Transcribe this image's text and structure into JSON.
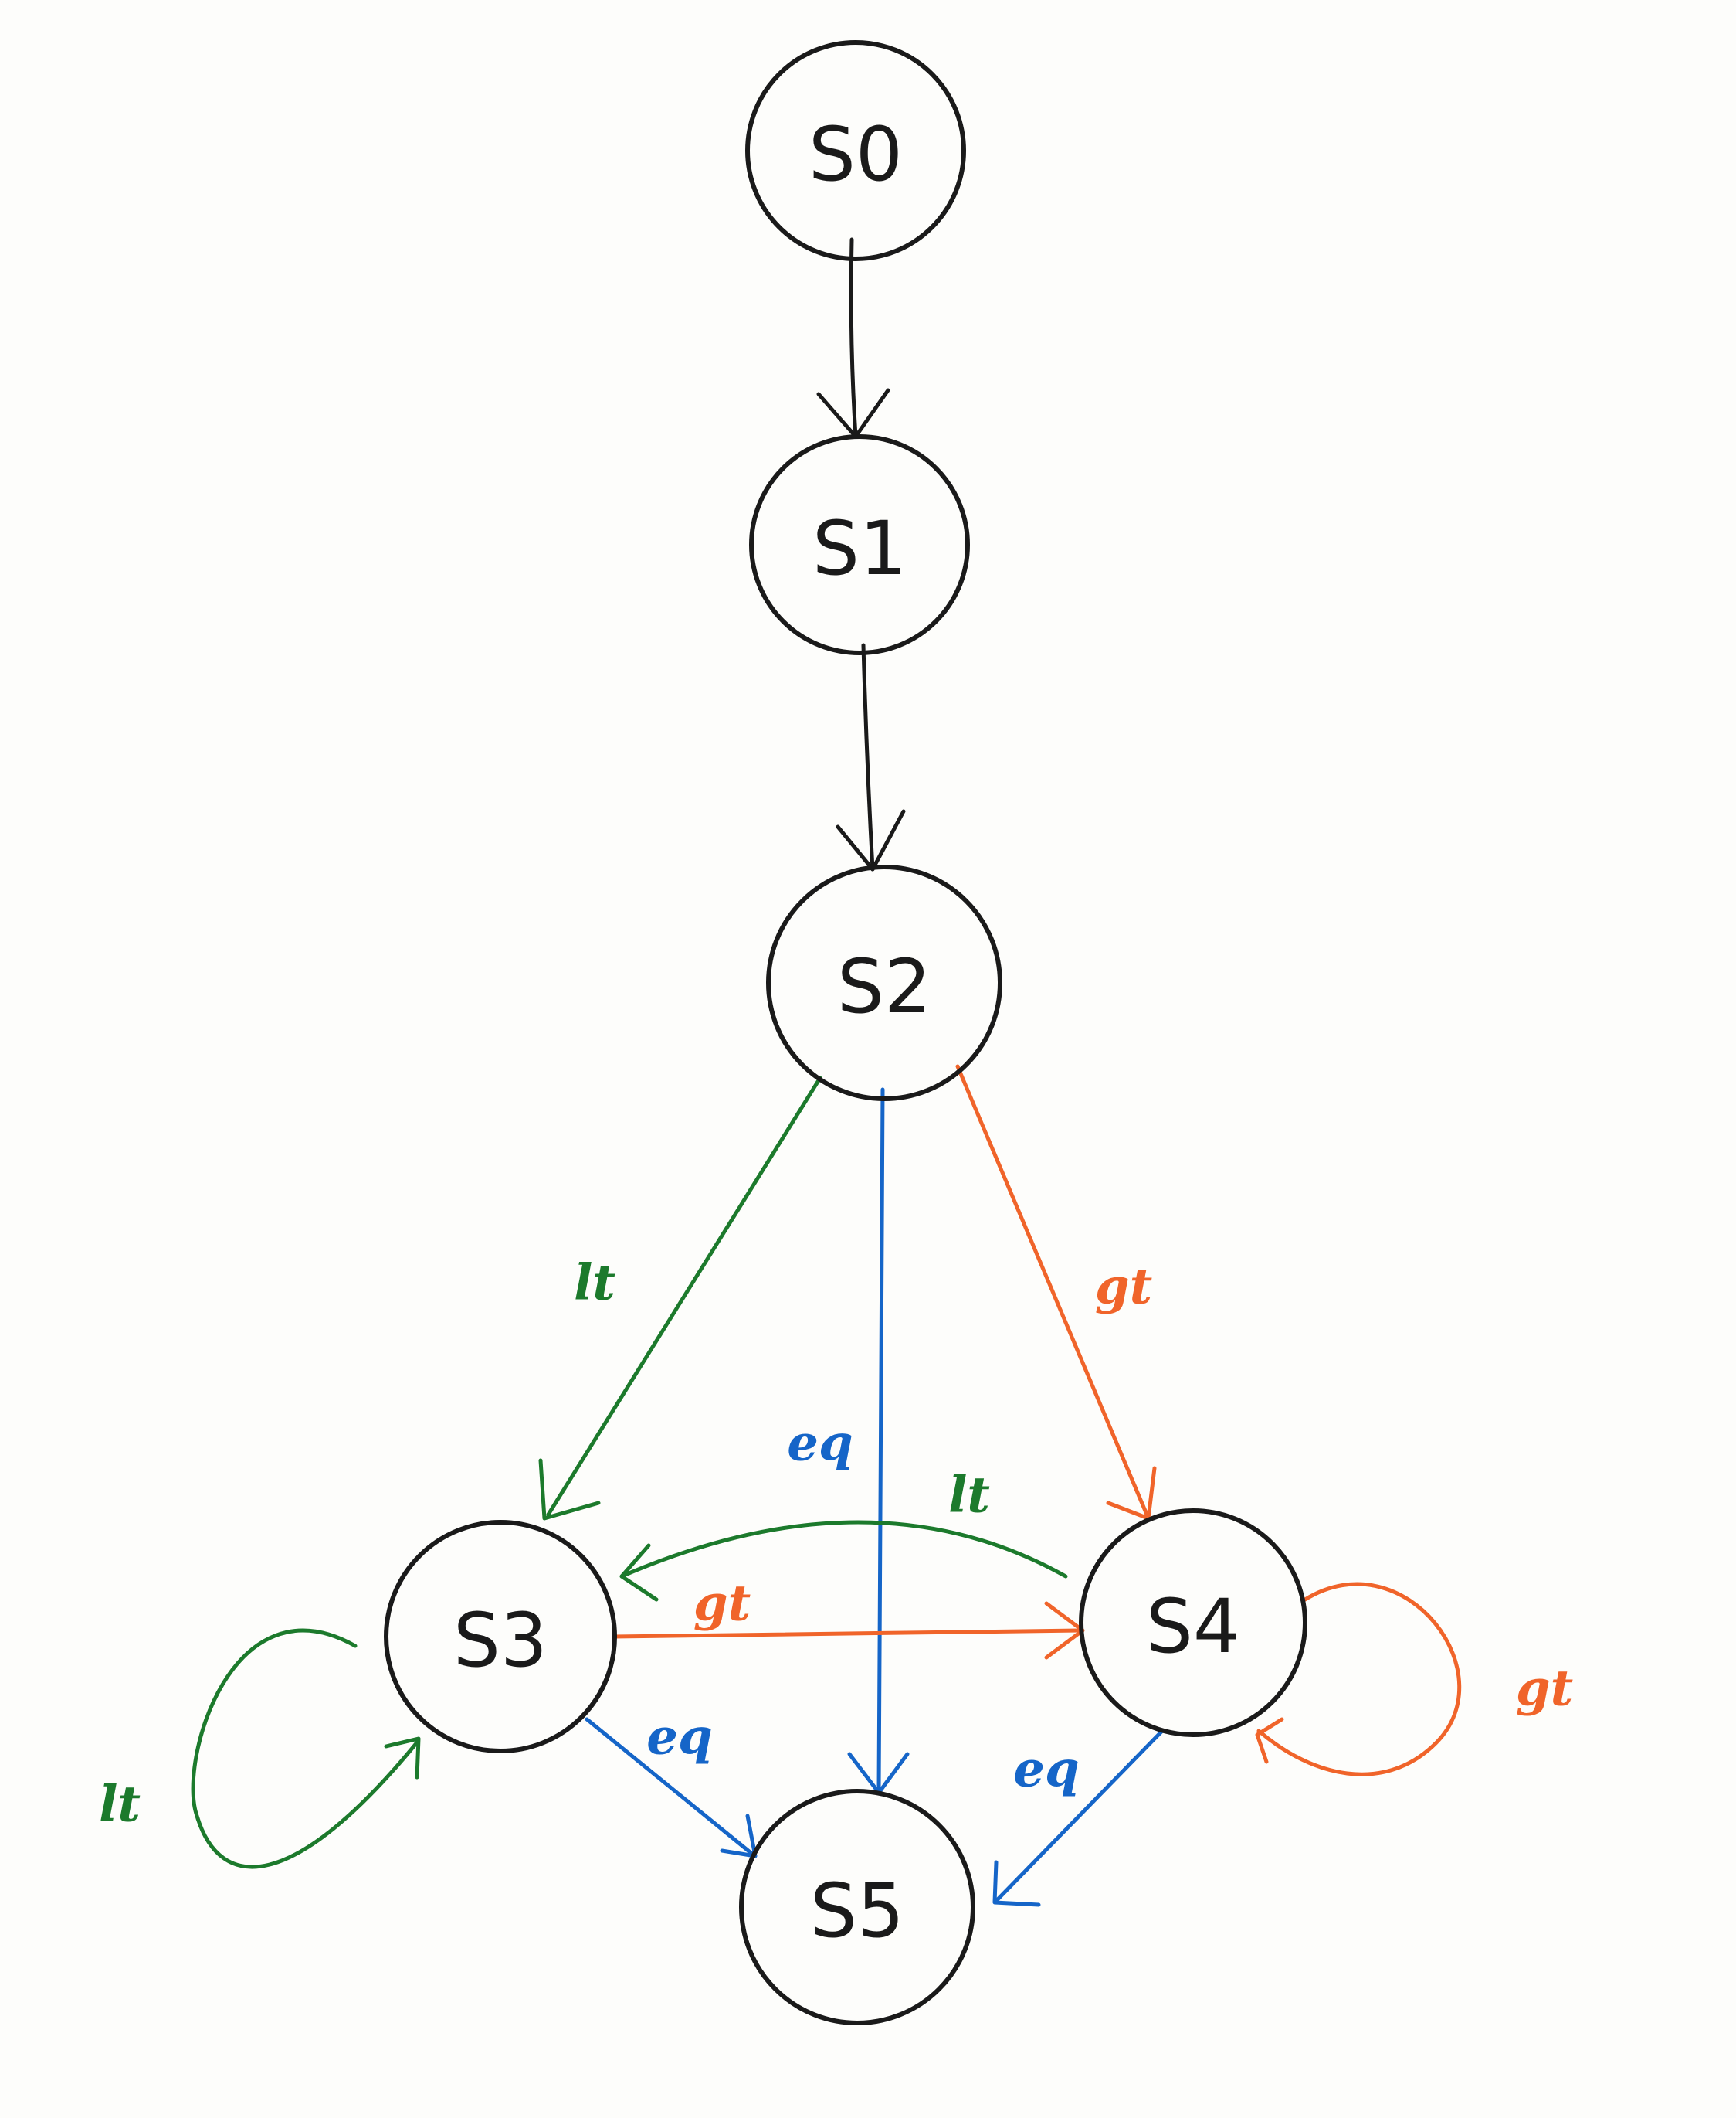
{
  "colors": {
    "black": "#1a1a1a",
    "lt": "#1c7a2c",
    "eq": "#1565c8",
    "gt": "#f0642a"
  },
  "nodes": {
    "s0": "S0",
    "s1": "S1",
    "s2": "S2",
    "s3": "S3",
    "s4": "S4",
    "s5": "S5"
  },
  "edges": [
    {
      "from": "S0",
      "to": "S1",
      "label": "",
      "color": "black"
    },
    {
      "from": "S1",
      "to": "S2",
      "label": "",
      "color": "black"
    },
    {
      "from": "S2",
      "to": "S3",
      "label": "lt",
      "color": "lt"
    },
    {
      "from": "S2",
      "to": "S5",
      "label": "eq",
      "color": "eq"
    },
    {
      "from": "S2",
      "to": "S4",
      "label": "gt",
      "color": "gt"
    },
    {
      "from": "S4",
      "to": "S3",
      "label": "lt",
      "color": "lt"
    },
    {
      "from": "S3",
      "to": "S4",
      "label": "gt",
      "color": "gt"
    },
    {
      "from": "S3",
      "to": "S3",
      "label": "lt",
      "color": "lt"
    },
    {
      "from": "S4",
      "to": "S4",
      "label": "gt",
      "color": "gt"
    },
    {
      "from": "S3",
      "to": "S5",
      "label": "eq",
      "color": "eq"
    },
    {
      "from": "S4",
      "to": "S5",
      "label": "eq",
      "color": "eq"
    }
  ],
  "edge_labels": {
    "s2_s3": "lt",
    "s2_s5": "eq",
    "s2_s4": "gt",
    "s4_s3": "lt",
    "s3_s4": "gt",
    "s3_self": "lt",
    "s4_self": "gt",
    "s3_s5": "eq",
    "s4_s5": "eq"
  }
}
